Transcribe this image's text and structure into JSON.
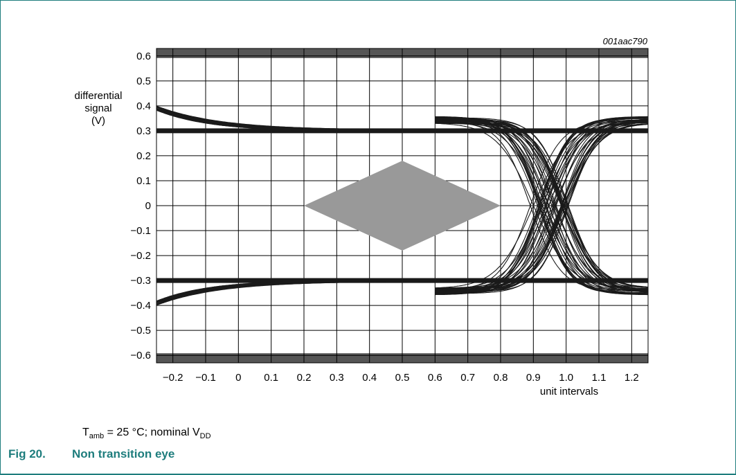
{
  "chart_data": {
    "type": "line",
    "figure_id": "001aac790",
    "xlabel": "unit intervals",
    "ylabel_lines": [
      "differential",
      "signal",
      "(V)"
    ],
    "xlim": [
      -0.25,
      1.25
    ],
    "ylim": [
      -0.63,
      0.63
    ],
    "x_ticks": [
      -0.2,
      -0.1,
      0,
      0.1,
      0.2,
      0.3,
      0.4,
      0.5,
      0.6,
      0.7,
      0.8,
      0.9,
      1.0,
      1.1,
      1.2
    ],
    "x_tick_labels": [
      "−0.2",
      "−0.1",
      "0",
      "0.1",
      "0.2",
      "0.3",
      "0.4",
      "0.5",
      "0.6",
      "0.7",
      "0.8",
      "0.9",
      "1.0",
      "1.1",
      "1.2"
    ],
    "y_ticks": [
      0.6,
      0.5,
      0.4,
      0.3,
      0.2,
      0.1,
      0,
      -0.1,
      -0.2,
      -0.3,
      -0.4,
      -0.5,
      -0.6
    ],
    "y_tick_labels": [
      "0.6",
      "0.5",
      "0.4",
      "0.3",
      "0.2",
      "0.1",
      "0",
      "−0.1",
      "−0.2",
      "−0.3",
      "−0.4",
      "−0.5",
      "−0.6"
    ],
    "grid": true,
    "limit_bands": [
      0.6,
      -0.6
    ],
    "eye_mask": [
      [
        0.2,
        0
      ],
      [
        0.5,
        0.18
      ],
      [
        0.8,
        0
      ],
      [
        0.5,
        -0.18
      ]
    ],
    "high_level": 0.3,
    "low_level": -0.3,
    "crossing_point": [
      0.95,
      0
    ],
    "initial_overshoot": 0.4,
    "colors": {
      "trace": "#1a1a1a",
      "mask": "#999999",
      "band": "#555555",
      "grid": "#000000"
    }
  },
  "caption": {
    "condition_t": "T",
    "condition_t_sub": "amb",
    "condition_mid": " = 25 °C; nominal V",
    "condition_v_sub": "DD",
    "figure_number": "Fig 20.",
    "figure_title": "Non transition eye"
  }
}
